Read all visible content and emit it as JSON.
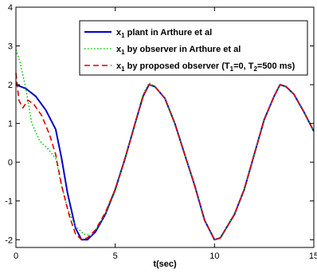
{
  "chart_data": {
    "type": "line",
    "xlabel": "t(sec)",
    "ylabel": "",
    "xlim": [
      0,
      15
    ],
    "ylim": [
      -2.2,
      4
    ],
    "xticks": [
      "0",
      "5",
      "10",
      "15"
    ],
    "yticks": [
      "-2",
      "-1",
      "0",
      "1",
      "2",
      "3",
      "4"
    ],
    "legend_position": "top-right",
    "series": [
      {
        "name": "x1 plant in Arthure et al",
        "legend_main": "x",
        "legend_sub": "1",
        "legend_rest": " plant in Arthure et al",
        "color": "#0000cc",
        "style": "solid",
        "points": [
          [
            0,
            2.0
          ],
          [
            0.5,
            1.9
          ],
          [
            1.0,
            1.7
          ],
          [
            1.5,
            1.35
          ],
          [
            2.0,
            0.85
          ],
          [
            2.3,
            0.1
          ],
          [
            2.6,
            -0.8
          ],
          [
            3.0,
            -1.7
          ],
          [
            3.3,
            -2.0
          ],
          [
            3.6,
            -2.0
          ],
          [
            4.0,
            -1.8
          ],
          [
            4.5,
            -1.35
          ],
          [
            5.0,
            -0.7
          ],
          [
            5.5,
            0.1
          ],
          [
            6.0,
            1.0
          ],
          [
            6.4,
            1.7
          ],
          [
            6.7,
            2.0
          ],
          [
            7.0,
            1.95
          ],
          [
            7.5,
            1.65
          ],
          [
            8.0,
            1.0
          ],
          [
            8.5,
            0.2
          ],
          [
            9.0,
            -0.6
          ],
          [
            9.5,
            -1.5
          ],
          [
            10.0,
            -2.0
          ],
          [
            10.3,
            -1.95
          ],
          [
            11.0,
            -1.35
          ],
          [
            11.5,
            -0.7
          ],
          [
            12.0,
            0.2
          ],
          [
            12.5,
            1.1
          ],
          [
            13.0,
            1.7
          ],
          [
            13.3,
            2.0
          ],
          [
            13.6,
            1.95
          ],
          [
            14.0,
            1.75
          ],
          [
            14.5,
            1.3
          ],
          [
            15.0,
            0.8
          ]
        ]
      },
      {
        "name": "x1 by observer in Arthure et al",
        "legend_main": "x",
        "legend_sub": "1",
        "legend_rest": " by observer in Arthure et al",
        "color": "#00cc00",
        "style": "dotted",
        "points": [
          [
            0,
            2.9
          ],
          [
            0.2,
            2.6
          ],
          [
            0.5,
            1.9
          ],
          [
            0.8,
            1.0
          ],
          [
            1.2,
            0.55
          ],
          [
            1.6,
            0.35
          ],
          [
            2.0,
            0.1
          ],
          [
            2.3,
            -0.6
          ],
          [
            2.6,
            -1.2
          ],
          [
            3.0,
            -1.65
          ],
          [
            3.4,
            -1.85
          ],
          [
            3.8,
            -1.9
          ],
          [
            4.2,
            -1.6
          ],
          [
            4.6,
            -1.25
          ],
          [
            5.0,
            -0.75
          ],
          [
            5.5,
            0.1
          ],
          [
            6.0,
            1.0
          ],
          [
            6.4,
            1.75
          ],
          [
            6.7,
            2.05
          ],
          [
            7.0,
            1.95
          ],
          [
            7.5,
            1.65
          ],
          [
            8.0,
            1.0
          ],
          [
            8.5,
            0.2
          ],
          [
            9.0,
            -0.6
          ],
          [
            9.5,
            -1.5
          ],
          [
            10.0,
            -2.0
          ],
          [
            10.3,
            -1.95
          ],
          [
            11.0,
            -1.35
          ],
          [
            11.5,
            -0.7
          ],
          [
            12.0,
            0.2
          ],
          [
            12.5,
            1.1
          ],
          [
            13.0,
            1.7
          ],
          [
            13.3,
            2.0
          ],
          [
            13.6,
            1.95
          ],
          [
            14.0,
            1.75
          ],
          [
            14.5,
            1.3
          ],
          [
            15.0,
            0.8
          ]
        ]
      },
      {
        "name": "x1 by proposed observer (T1=0, T2=500 ms)",
        "legend_main": "x",
        "legend_sub": "1",
        "legend_rest": " by proposed observer (T",
        "legend_extra": [
          {
            "text": "1",
            "sub": true
          },
          {
            "text": "=0, T",
            "sub": false
          },
          {
            "text": "2",
            "sub": true
          },
          {
            "text": "=500 ms)",
            "sub": false
          }
        ],
        "color": "#dd0000",
        "style": "dashed",
        "points": [
          [
            0,
            2.3
          ],
          [
            0.15,
            1.6
          ],
          [
            0.35,
            1.4
          ],
          [
            0.6,
            1.6
          ],
          [
            0.9,
            1.5
          ],
          [
            1.3,
            1.2
          ],
          [
            1.7,
            0.7
          ],
          [
            2.0,
            0.2
          ],
          [
            2.3,
            -0.6
          ],
          [
            2.7,
            -1.4
          ],
          [
            3.0,
            -1.85
          ],
          [
            3.3,
            -2.0
          ],
          [
            3.6,
            -1.95
          ],
          [
            4.0,
            -1.75
          ],
          [
            4.5,
            -1.3
          ],
          [
            5.0,
            -0.7
          ],
          [
            5.5,
            0.1
          ],
          [
            6.0,
            1.0
          ],
          [
            6.4,
            1.7
          ],
          [
            6.7,
            2.0
          ],
          [
            7.0,
            1.95
          ],
          [
            7.5,
            1.65
          ],
          [
            8.0,
            1.0
          ],
          [
            8.5,
            0.2
          ],
          [
            9.0,
            -0.6
          ],
          [
            9.5,
            -1.5
          ],
          [
            10.0,
            -2.0
          ],
          [
            10.3,
            -1.95
          ],
          [
            11.0,
            -1.35
          ],
          [
            11.5,
            -0.7
          ],
          [
            12.0,
            0.2
          ],
          [
            12.5,
            1.1
          ],
          [
            13.0,
            1.7
          ],
          [
            13.3,
            2.0
          ],
          [
            13.6,
            1.95
          ],
          [
            14.0,
            1.75
          ],
          [
            14.5,
            1.3
          ],
          [
            15.0,
            0.8
          ]
        ]
      }
    ]
  }
}
